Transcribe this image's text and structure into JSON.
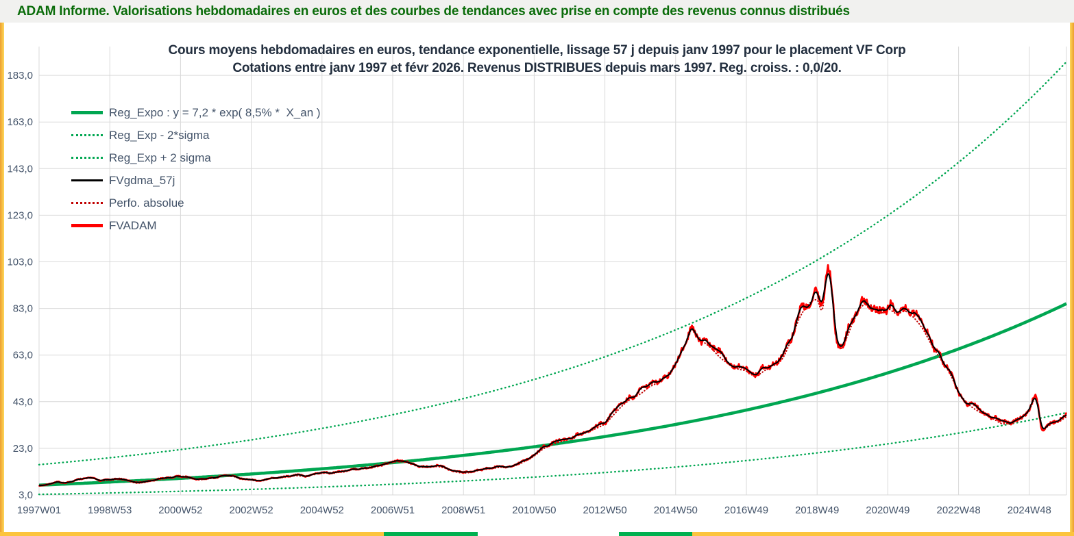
{
  "header": {
    "title": "ADAM Informe. Valorisations hebdomadaires en euros et des courbes de tendances avec prise en compte des revenus connus distribués"
  },
  "frame": {
    "border_yellow": "#fcc43e",
    "border_green": "#00b050",
    "header_text_green": "#0a6c0a"
  },
  "chart_data": {
    "type": "line",
    "title": [
      "Cours moyens hebdomadaires en euros, tendance exponentielle, lissage 57 j depuis janv 1997 pour le placement VF Corp",
      "Cotations entre janv 1997 et févr 2026. Revenus DISTRIBUES depuis mars 1997. Reg. croiss. : 0,0/20."
    ],
    "grid": true,
    "legend_position": "top-left",
    "x_axis": {
      "tick_labels": [
        "1997W01",
        "1998W53",
        "2000W52",
        "2002W52",
        "2004W52",
        "2006W51",
        "2008W51",
        "2010W50",
        "2012W50",
        "2014W50",
        "2016W49",
        "2018W49",
        "2020W49",
        "2022W48",
        "2024W48"
      ],
      "tick_years": [
        0,
        2,
        4,
        6,
        8,
        10,
        12,
        14,
        16,
        18,
        20,
        22,
        24,
        26,
        28
      ],
      "min_year": 0,
      "max_year": 29.05
    },
    "y_axis": {
      "ticks": [
        3,
        23,
        43,
        63,
        83,
        103,
        123,
        143,
        163,
        183
      ],
      "tick_labels": [
        "3,0",
        "23,0",
        "43,0",
        "63,0",
        "83,0",
        "103,0",
        "123,0",
        "143,0",
        "163,0",
        "183,0"
      ],
      "min": 3,
      "max": 189.5
    },
    "series": [
      {
        "name": "Reg_Expo : y = 7,2 * exp( 8,5% *  X_an )",
        "kind": "exp",
        "a": 7.2,
        "rate": 0.085,
        "color": "#00a651",
        "dash": "solid",
        "width": 4.5,
        "legend_weight": 5
      },
      {
        "name": "Reg_Exp - 2*sigma",
        "kind": "exp_band",
        "a": 7.2,
        "rate": 0.085,
        "factor": 0.45,
        "color": "#00a651",
        "dash": "dot",
        "width": 2.4,
        "legend_weight": 3
      },
      {
        "name": "Reg_Exp + 2 sigma",
        "kind": "exp_band",
        "a": 7.2,
        "rate": 0.085,
        "factor": 2.22,
        "color": "#00a651",
        "dash": "dot",
        "width": 2.4,
        "legend_weight": 3
      },
      {
        "name": "FVgdma_57j",
        "kind": "smoothed",
        "source": "FVADAM",
        "window_weeks": 8,
        "color": "#000000",
        "dash": "solid",
        "width": 2,
        "legend_weight": 3
      },
      {
        "name": "Perfo. absolue",
        "kind": "anchors_dotted",
        "source": "FVADAM",
        "color": "#c00000",
        "dash": "dot",
        "width": 2,
        "legend_weight": 3
      },
      {
        "name": "FVADAM",
        "kind": "anchors_noisy",
        "color": "#ff0000",
        "dash": "solid",
        "width": 2.8,
        "legend_weight": 5,
        "noise_pct_fast": 1.8,
        "noise_pct_slow": 3.2,
        "anchors": [
          [
            0,
            7.0
          ],
          [
            0.25,
            7.6
          ],
          [
            0.5,
            8.6
          ],
          [
            0.75,
            8.2
          ],
          [
            1,
            9.2
          ],
          [
            1.25,
            10.2
          ],
          [
            1.5,
            10.4
          ],
          [
            1.75,
            9.2
          ],
          [
            2,
            9.6
          ],
          [
            2.25,
            10.0
          ],
          [
            2.5,
            9.2
          ],
          [
            2.75,
            8.2
          ],
          [
            3,
            8.6
          ],
          [
            3.25,
            9.4
          ],
          [
            3.5,
            10.0
          ],
          [
            3.75,
            10.6
          ],
          [
            4,
            11.0
          ],
          [
            4.25,
            10.4
          ],
          [
            4.5,
            9.6
          ],
          [
            4.75,
            10.0
          ],
          [
            5,
            10.6
          ],
          [
            5.25,
            11.4
          ],
          [
            5.5,
            11.0
          ],
          [
            5.75,
            10.2
          ],
          [
            6,
            9.6
          ],
          [
            6.25,
            9.2
          ],
          [
            6.5,
            10.0
          ],
          [
            6.75,
            10.4
          ],
          [
            7,
            10.8
          ],
          [
            7.25,
            11.4
          ],
          [
            7.5,
            11.2
          ],
          [
            7.75,
            12.0
          ],
          [
            8,
            12.4
          ],
          [
            8.25,
            12.8
          ],
          [
            8.5,
            13.2
          ],
          [
            8.75,
            13.8
          ],
          [
            9,
            14.2
          ],
          [
            9.25,
            14.6
          ],
          [
            9.5,
            15.2
          ],
          [
            9.75,
            16.2
          ],
          [
            10,
            17.2
          ],
          [
            10.25,
            17.8
          ],
          [
            10.5,
            17.0
          ],
          [
            10.75,
            15.6
          ],
          [
            11,
            15.0
          ],
          [
            11.25,
            15.4
          ],
          [
            11.5,
            14.6
          ],
          [
            11.75,
            13.2
          ],
          [
            12,
            12.6
          ],
          [
            12.25,
            13.0
          ],
          [
            12.5,
            14.0
          ],
          [
            12.75,
            14.4
          ],
          [
            13,
            15.0
          ],
          [
            13.25,
            15.4
          ],
          [
            13.5,
            16.0
          ],
          [
            13.75,
            17.8
          ],
          [
            14,
            20.0
          ],
          [
            14.25,
            23.0
          ],
          [
            14.5,
            25.0
          ],
          [
            14.75,
            26.2
          ],
          [
            15,
            27.5
          ],
          [
            15.25,
            29.0
          ],
          [
            15.5,
            30.5
          ],
          [
            15.75,
            32.0
          ],
          [
            16,
            34.0
          ],
          [
            16.25,
            38.0
          ],
          [
            16.5,
            42.0
          ],
          [
            16.75,
            45.0
          ],
          [
            17,
            47.0
          ],
          [
            17.25,
            50.0
          ],
          [
            17.5,
            52.0
          ],
          [
            17.75,
            55.0
          ],
          [
            18,
            60.0
          ],
          [
            18.25,
            68.0
          ],
          [
            18.45,
            75.0
          ],
          [
            18.6,
            72.0
          ],
          [
            18.75,
            70.0
          ],
          [
            19,
            67.0
          ],
          [
            19.25,
            63.0
          ],
          [
            19.5,
            60.0
          ],
          [
            19.75,
            58.0
          ],
          [
            20,
            57.0
          ],
          [
            20.25,
            55.0
          ],
          [
            20.5,
            57.0
          ],
          [
            20.75,
            60.0
          ],
          [
            21,
            62.0
          ],
          [
            21.25,
            70.0
          ],
          [
            21.5,
            80.0
          ],
          [
            21.75,
            86.0
          ],
          [
            22,
            88.0
          ],
          [
            22.15,
            84.0
          ],
          [
            22.3,
            101.0
          ],
          [
            22.45,
            88.0
          ],
          [
            22.55,
            70.0
          ],
          [
            22.7,
            67.0
          ],
          [
            22.85,
            72.0
          ],
          [
            23,
            78.0
          ],
          [
            23.25,
            85.0
          ],
          [
            23.5,
            86.0
          ],
          [
            23.75,
            82.0
          ],
          [
            24,
            84.0
          ],
          [
            24.25,
            82.0
          ],
          [
            24.5,
            83.0
          ],
          [
            24.75,
            80.0
          ],
          [
            25,
            75.0
          ],
          [
            25.25,
            68.0
          ],
          [
            25.5,
            62.0
          ],
          [
            25.75,
            56.0
          ],
          [
            26,
            48.0
          ],
          [
            26.25,
            43.0
          ],
          [
            26.5,
            40.0
          ],
          [
            26.75,
            38.0
          ],
          [
            27,
            36.0
          ],
          [
            27.25,
            34.0
          ],
          [
            27.5,
            35.0
          ],
          [
            27.75,
            37.0
          ],
          [
            28,
            40.0
          ],
          [
            28.2,
            45.0
          ],
          [
            28.35,
            32.0
          ],
          [
            28.6,
            34.0
          ],
          [
            28.85,
            35.0
          ],
          [
            29.05,
            37.0
          ]
        ]
      }
    ]
  }
}
